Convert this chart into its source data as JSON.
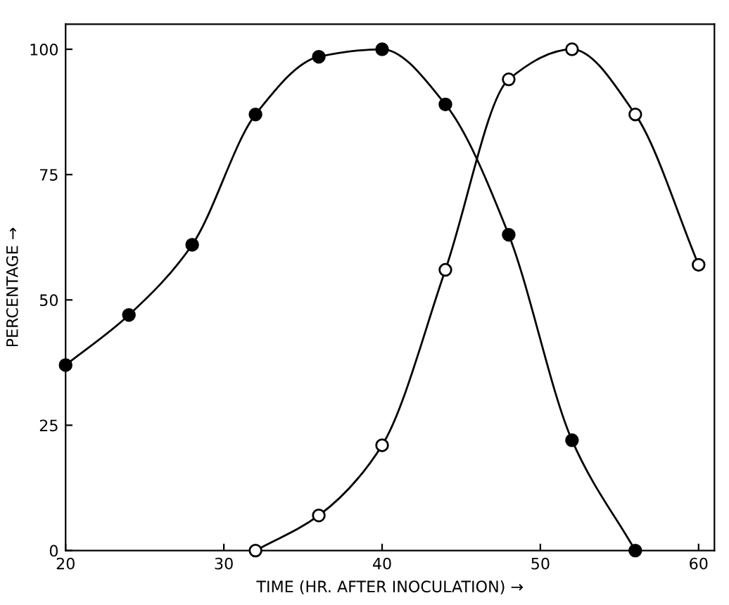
{
  "chart_data": {
    "type": "line",
    "xlabel": "TIME (HR. AFTER INOCULATION) →",
    "ylabel": "PERCENTAGE →",
    "xlim": [
      20,
      61
    ],
    "ylim": [
      0,
      105
    ],
    "xticks": [
      20,
      30,
      40,
      50,
      60
    ],
    "yticks": [
      0,
      25,
      50,
      75,
      100
    ],
    "grid": false,
    "legend": false,
    "marker": "circle",
    "line_style": "solid",
    "series": [
      {
        "color": "#000000",
        "colors": [
          "#000000",
          "#000000",
          "#000000",
          "#000000",
          "#000000",
          "#000000",
          "#000000",
          "#000000",
          "#000000",
          "#000000"
        ],
        "x": [
          20,
          24,
          28,
          32,
          36,
          40,
          44,
          48,
          52,
          56
        ],
        "values": [
          37,
          47,
          61,
          87,
          98.5,
          100,
          89,
          63,
          22,
          0
        ]
      },
      {
        "color": "#000000",
        "colors": [
          "#ffffff",
          "#ffffff",
          "#ffffff",
          "#ffffff",
          "#ffffff",
          "#ffffff",
          "#ffffff",
          "#ffffff"
        ],
        "x": [
          32,
          36,
          40,
          44,
          48,
          52,
          56,
          60
        ],
        "values": [
          0,
          7,
          21,
          56,
          94,
          100,
          87,
          57
        ]
      }
    ]
  }
}
